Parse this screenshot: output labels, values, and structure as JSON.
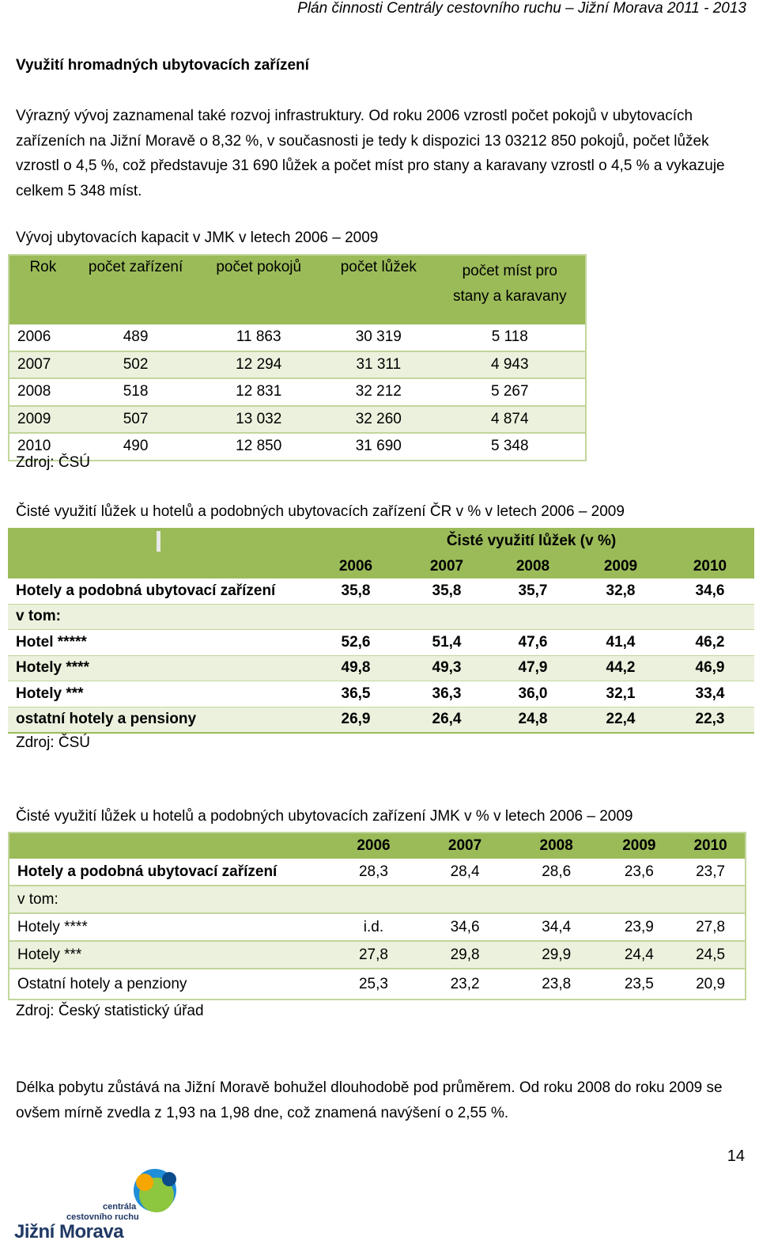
{
  "header": {
    "text": "Plán činnosti Centrály cestovního ruchu – Jižní Morava 2011 - 2013"
  },
  "section_title": "Využití hromadných ubytovacích zařízení",
  "paragraph1": "Výrazný vývoj zaznamenal také rozvoj infrastruktury. Od roku 2006 vzrostl počet pokojů v ubytovacích zařízeních na Jižní Moravě o 8,32 %, v současnosti je tedy k dispozici 13 03212 850 pokojů, počet lůžek vzrostl o 4,5 %, což představuje 31 690 lůžek a počet míst pro stany a karavany vzrostl o 4,5 % a vykazuje celkem 5 348 míst.",
  "table1": {
    "caption": "Vývoj ubytovacích kapacit v JMK v letech 2006 – 2009",
    "headers": [
      "Rok",
      "počet zařízení",
      "počet pokojů",
      "počet lůžek",
      "počet míst pro stany a karavany"
    ],
    "rows": [
      [
        "2006",
        "489",
        "11 863",
        "30 319",
        "5 118"
      ],
      [
        "2007",
        "502",
        "12 294",
        "31 311",
        "4 943"
      ],
      [
        "2008",
        "518",
        "12 831",
        "32 212",
        "5 267"
      ],
      [
        "2009",
        "507",
        "13 032",
        "32 260",
        "4 874"
      ],
      [
        "2010",
        "490",
        "12 850",
        "31 690",
        "5 348"
      ]
    ],
    "source": "Zdroj: ČSÚ"
  },
  "table2": {
    "caption": "Čisté využití lůžek u hotelů a podobných ubytovacích zařízení ČR v % v letech 2006 – 2009",
    "group_header": "Čisté využití lůžek (v %)",
    "years": [
      "2006",
      "2007",
      "2008",
      "2009",
      "2010"
    ],
    "rows": [
      {
        "label": "Hotely a podobná ubytovací zařízení",
        "values": [
          "35,8",
          "35,8",
          "35,7",
          "32,8",
          "34,6"
        ]
      },
      {
        "label": "v tom:",
        "values": [
          "",
          "",
          "",
          "",
          ""
        ]
      },
      {
        "label": "Hotel *****",
        "values": [
          "52,6",
          "51,4",
          "47,6",
          "41,4",
          "46,2"
        ]
      },
      {
        "label": "Hotely ****",
        "values": [
          "49,8",
          "49,3",
          "47,9",
          "44,2",
          "46,9"
        ]
      },
      {
        "label": "Hotely ***",
        "values": [
          "36,5",
          "36,3",
          "36,0",
          "32,1",
          "33,4"
        ]
      },
      {
        "label": "ostatní hotely a pensiony",
        "values": [
          "26,9",
          "26,4",
          "24,8",
          "22,4",
          "22,3"
        ]
      }
    ],
    "source": "Zdroj: ČSÚ"
  },
  "table3": {
    "caption": "Čisté využití lůžek u hotelů a podobných ubytovacích zařízení JMK v % v letech 2006 – 2009",
    "years": [
      "2006",
      "2007",
      "2008",
      "2009",
      "2010"
    ],
    "rows": [
      {
        "label": "Hotely a podobná ubytovací zařízení",
        "values": [
          "28,3",
          "28,4",
          "28,6",
          "23,6",
          "23,7"
        ]
      },
      {
        "label": "v tom:",
        "values": [
          "",
          "",
          "",
          "",
          ""
        ]
      },
      {
        "label": "Hotely ****",
        "values": [
          "i.d.",
          "34,6",
          "34,4",
          "23,9",
          "27,8"
        ]
      },
      {
        "label": "Hotely ***",
        "values": [
          "27,8",
          "29,8",
          "29,9",
          "24,4",
          "24,5"
        ]
      },
      {
        "label": "Ostatní hotely a penziony",
        "values": [
          "25,3",
          "23,2",
          "23,8",
          "23,5",
          "20,9"
        ]
      }
    ],
    "source": "Zdroj: Český statistický úřad"
  },
  "paragraph2": "Délka pobytu zůstává na Jižní Moravě bohužel dlouhodobě pod průměrem. Od roku 2008 do roku 2009 se ovšem mírně zvedla z 1,93 na 1,98 dne, což znamená navýšení o 2,55 %.",
  "page_number": "14",
  "logo": {
    "line1": "centrála",
    "line2": "cestovního ruchu",
    "line3": "Jižní Morava"
  },
  "colors": {
    "header_green": "#9bbb59",
    "band_green": "#ebf1dd",
    "border_green": "#c2d69b"
  }
}
